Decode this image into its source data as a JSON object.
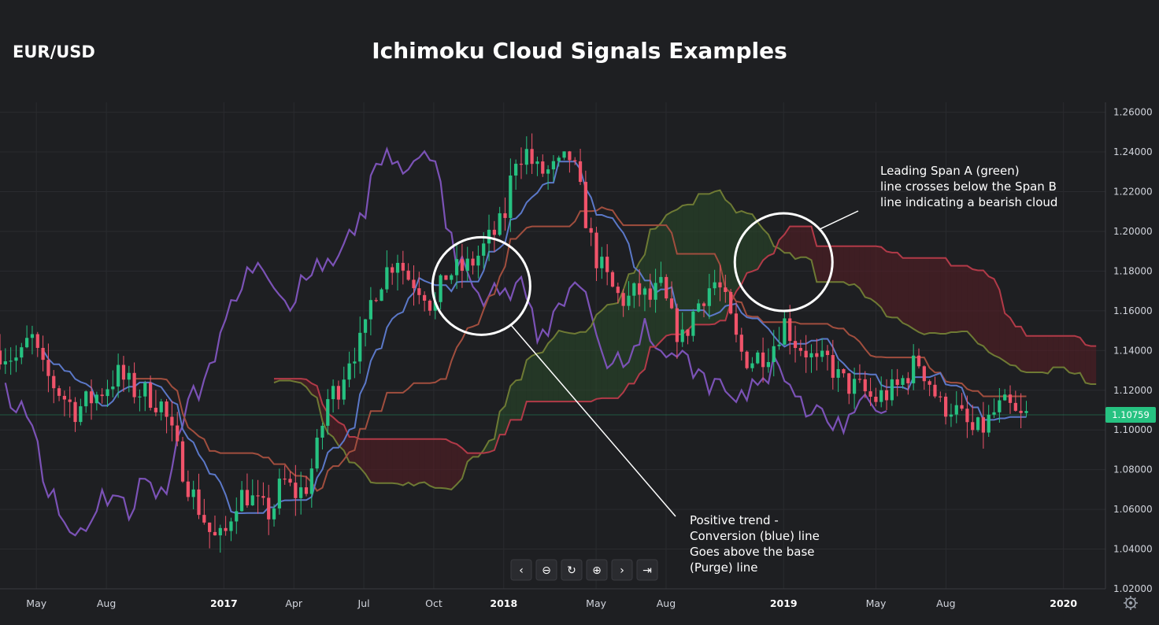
{
  "header": {
    "symbol": "EUR/USD",
    "title": "Ichimoku Cloud Signals Examples"
  },
  "colors": {
    "background": "#1e1f22",
    "up_candle": "#26c281",
    "down_candle": "#f0536a",
    "conversion_line": "#5b78c8",
    "base_line": "#a14e3e",
    "lagging_span": "#7b52b6",
    "span_a": "#6e7a34",
    "span_b": "#b23a48",
    "bull_cloud": "#2a4a2a",
    "bear_cloud": "#5a1e24",
    "price_label": "#26c281",
    "grid": "#2a2b2f"
  },
  "controls": {
    "prev_icon": "‹",
    "zoom_out_icon": "⊖",
    "reset_icon": "↻",
    "zoom_in_icon": "⊕",
    "next_icon": "›",
    "last_icon": "⇥",
    "settings_icon": "gear-icon"
  },
  "annotations": [
    {
      "lines": [
        "Leading Span A (green)",
        "line crosses below the Span B",
        "line indicating a bearish cloud"
      ],
      "target_date": 2019.0,
      "target_price": 1.1845
    },
    {
      "lines": [
        "Positive trend -",
        "Conversion (blue) line",
        "Goes above the base",
        "(Purge) line"
      ],
      "target_date": 2017.92,
      "target_price": 1.1725
    }
  ],
  "chart_data": {
    "type": "candlestick",
    "title": "Ichimoku Cloud Signals Examples",
    "symbol": "EUR/USD",
    "last_price": "1.10759",
    "last_price_value": 1.10759,
    "ylim": [
      1.02,
      1.265
    ],
    "xlim": [
      2016.2,
      2020.15
    ],
    "yticks": [
      {
        "label": "1.26000",
        "value": 1.26
      },
      {
        "label": "1.24000",
        "value": 1.24
      },
      {
        "label": "1.22000",
        "value": 1.22
      },
      {
        "label": "1.20000",
        "value": 1.2
      },
      {
        "label": "1.18000",
        "value": 1.18
      },
      {
        "label": "1.16000",
        "value": 1.16
      },
      {
        "label": "1.14000",
        "value": 1.14
      },
      {
        "label": "1.12000",
        "value": 1.12
      },
      {
        "label": "1.10000",
        "value": 1.1
      },
      {
        "label": "1.08000",
        "value": 1.08
      },
      {
        "label": "1.06000",
        "value": 1.06
      },
      {
        "label": "1.04000",
        "value": 1.04
      },
      {
        "label": "1.02000",
        "value": 1.02
      }
    ],
    "xticks": [
      {
        "label": "May",
        "date": 2016.33,
        "year": false
      },
      {
        "label": "Aug",
        "date": 2016.58,
        "year": false
      },
      {
        "label": "2017",
        "date": 2017.0,
        "year": true
      },
      {
        "label": "Apr",
        "date": 2017.25,
        "year": false
      },
      {
        "label": "Jul",
        "date": 2017.5,
        "year": false
      },
      {
        "label": "Oct",
        "date": 2017.75,
        "year": false
      },
      {
        "label": "2018",
        "date": 2018.0,
        "year": true
      },
      {
        "label": "May",
        "date": 2018.33,
        "year": false
      },
      {
        "label": "Aug",
        "date": 2018.58,
        "year": false
      },
      {
        "label": "2019",
        "date": 2019.0,
        "year": true
      },
      {
        "label": "May",
        "date": 2019.33,
        "year": false
      },
      {
        "label": "Aug",
        "date": 2019.58,
        "year": false
      },
      {
        "label": "2020",
        "date": 2020.0,
        "year": true
      }
    ],
    "close_anchors": [
      [
        2016.2,
        1.14
      ],
      [
        2016.27,
        1.135
      ],
      [
        2016.31,
        1.148
      ],
      [
        2016.35,
        1.13
      ],
      [
        2016.42,
        1.118
      ],
      [
        2016.47,
        1.11
      ],
      [
        2016.55,
        1.118
      ],
      [
        2016.62,
        1.128
      ],
      [
        2016.68,
        1.12
      ],
      [
        2016.73,
        1.118
      ],
      [
        2016.78,
        1.112
      ],
      [
        2016.83,
        1.09
      ],
      [
        2016.88,
        1.07
      ],
      [
        2016.93,
        1.055
      ],
      [
        2016.96,
        1.045
      ],
      [
        2017.0,
        1.045
      ],
      [
        2017.04,
        1.065
      ],
      [
        2017.08,
        1.068
      ],
      [
        2017.13,
        1.06
      ],
      [
        2017.17,
        1.058
      ],
      [
        2017.21,
        1.075
      ],
      [
        2017.25,
        1.068
      ],
      [
        2017.29,
        1.07
      ],
      [
        2017.33,
        1.088
      ],
      [
        2017.37,
        1.115
      ],
      [
        2017.41,
        1.122
      ],
      [
        2017.45,
        1.138
      ],
      [
        2017.5,
        1.145
      ],
      [
        2017.53,
        1.168
      ],
      [
        2017.57,
        1.178
      ],
      [
        2017.62,
        1.188
      ],
      [
        2017.65,
        1.178
      ],
      [
        2017.68,
        1.175
      ],
      [
        2017.72,
        1.17
      ],
      [
        2017.75,
        1.16
      ],
      [
        2017.79,
        1.178
      ],
      [
        2017.83,
        1.18
      ],
      [
        2017.87,
        1.182
      ],
      [
        2017.91,
        1.188
      ],
      [
        2017.96,
        1.198
      ],
      [
        2018.0,
        1.205
      ],
      [
        2018.04,
        1.238
      ],
      [
        2018.08,
        1.24
      ],
      [
        2018.12,
        1.23
      ],
      [
        2018.16,
        1.23
      ],
      [
        2018.2,
        1.232
      ],
      [
        2018.24,
        1.238
      ],
      [
        2018.28,
        1.215
      ],
      [
        2018.32,
        1.19
      ],
      [
        2018.36,
        1.178
      ],
      [
        2018.4,
        1.168
      ],
      [
        2018.44,
        1.165
      ],
      [
        2018.48,
        1.17
      ],
      [
        2018.52,
        1.165
      ],
      [
        2018.56,
        1.172
      ],
      [
        2018.6,
        1.155
      ],
      [
        2018.64,
        1.145
      ],
      [
        2018.68,
        1.16
      ],
      [
        2018.72,
        1.17
      ],
      [
        2018.76,
        1.175
      ],
      [
        2018.8,
        1.16
      ],
      [
        2018.84,
        1.14
      ],
      [
        2018.88,
        1.135
      ],
      [
        2018.92,
        1.138
      ],
      [
        2018.96,
        1.142
      ],
      [
        2019.0,
        1.155
      ],
      [
        2019.04,
        1.145
      ],
      [
        2019.08,
        1.14
      ],
      [
        2019.12,
        1.132
      ],
      [
        2019.16,
        1.135
      ],
      [
        2019.2,
        1.125
      ],
      [
        2019.24,
        1.122
      ],
      [
        2019.28,
        1.12
      ],
      [
        2019.32,
        1.115
      ],
      [
        2019.36,
        1.118
      ],
      [
        2019.4,
        1.12
      ],
      [
        2019.44,
        1.128
      ],
      [
        2019.48,
        1.135
      ],
      [
        2019.52,
        1.125
      ],
      [
        2019.56,
        1.112
      ],
      [
        2019.6,
        1.112
      ],
      [
        2019.64,
        1.105
      ],
      [
        2019.68,
        1.098
      ],
      [
        2019.72,
        1.102
      ],
      [
        2019.76,
        1.11
      ],
      [
        2019.8,
        1.112
      ],
      [
        2019.84,
        1.105
      ],
      [
        2019.88,
        1.108
      ]
    ],
    "candle_period_years": 0.0192,
    "ichimoku": {
      "conversion_periods": 9,
      "base_periods": 26,
      "leading_span_b_periods": 52,
      "displacement": 26
    },
    "highlights": [
      {
        "name": "bearish-cloud-crossover",
        "date": 2019.0,
        "price": 1.1845
      },
      {
        "name": "bullish-tk-cross",
        "date": 2017.92,
        "price": 1.1725
      }
    ]
  }
}
